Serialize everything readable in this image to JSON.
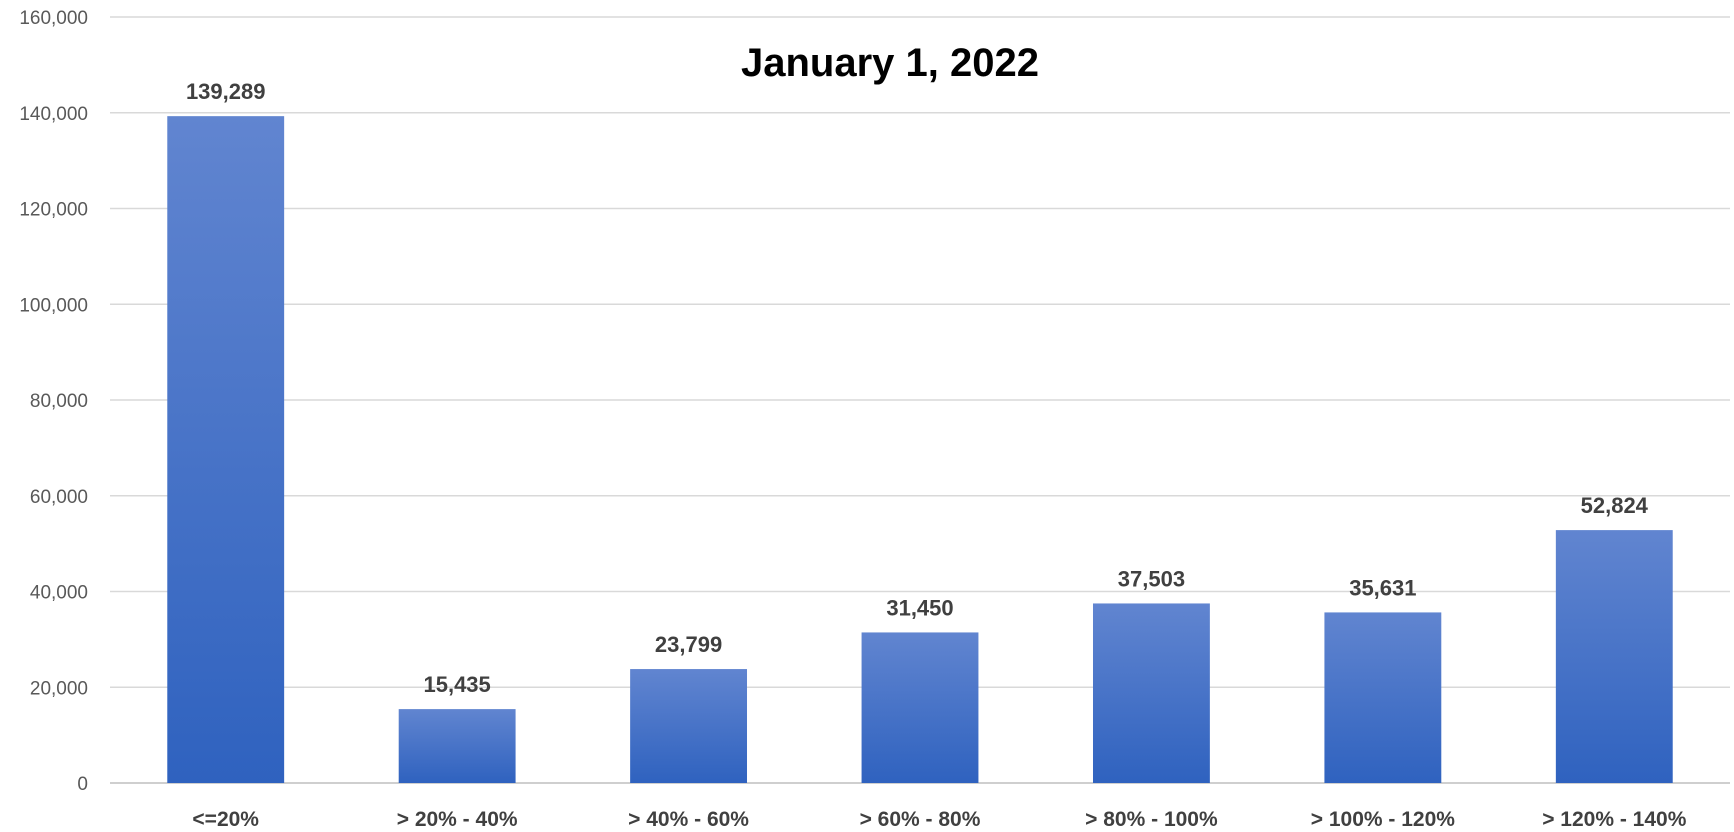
{
  "chart_data": {
    "type": "bar",
    "title": "January 1, 2022",
    "xlabel": "",
    "ylabel": "",
    "categories": [
      "<=20%",
      "> 20% - 40%",
      "> 40% - 60%",
      "> 60% - 80%",
      "> 80% - 100%",
      "> 100% - 120%",
      "> 120% - 140%"
    ],
    "values": [
      139289,
      15435,
      23799,
      31450,
      37503,
      35631,
      52824
    ],
    "value_labels": [
      "139,289",
      "15,435",
      "23,799",
      "31,450",
      "37,503",
      "35,631",
      "52,824"
    ],
    "ylim": [
      0,
      160000
    ],
    "yticks": [
      0,
      20000,
      40000,
      60000,
      80000,
      100000,
      120000,
      140000,
      160000
    ],
    "ytick_labels": [
      "0",
      "20,000",
      "40,000",
      "60,000",
      "80,000",
      "100,000",
      "120,000",
      "140,000",
      "160,000"
    ],
    "grid": true,
    "legend": "none",
    "colors": {
      "bar_top": "#6185d0",
      "bar_bottom": "#2f62bf",
      "gridline": "#d9d9d9"
    }
  }
}
